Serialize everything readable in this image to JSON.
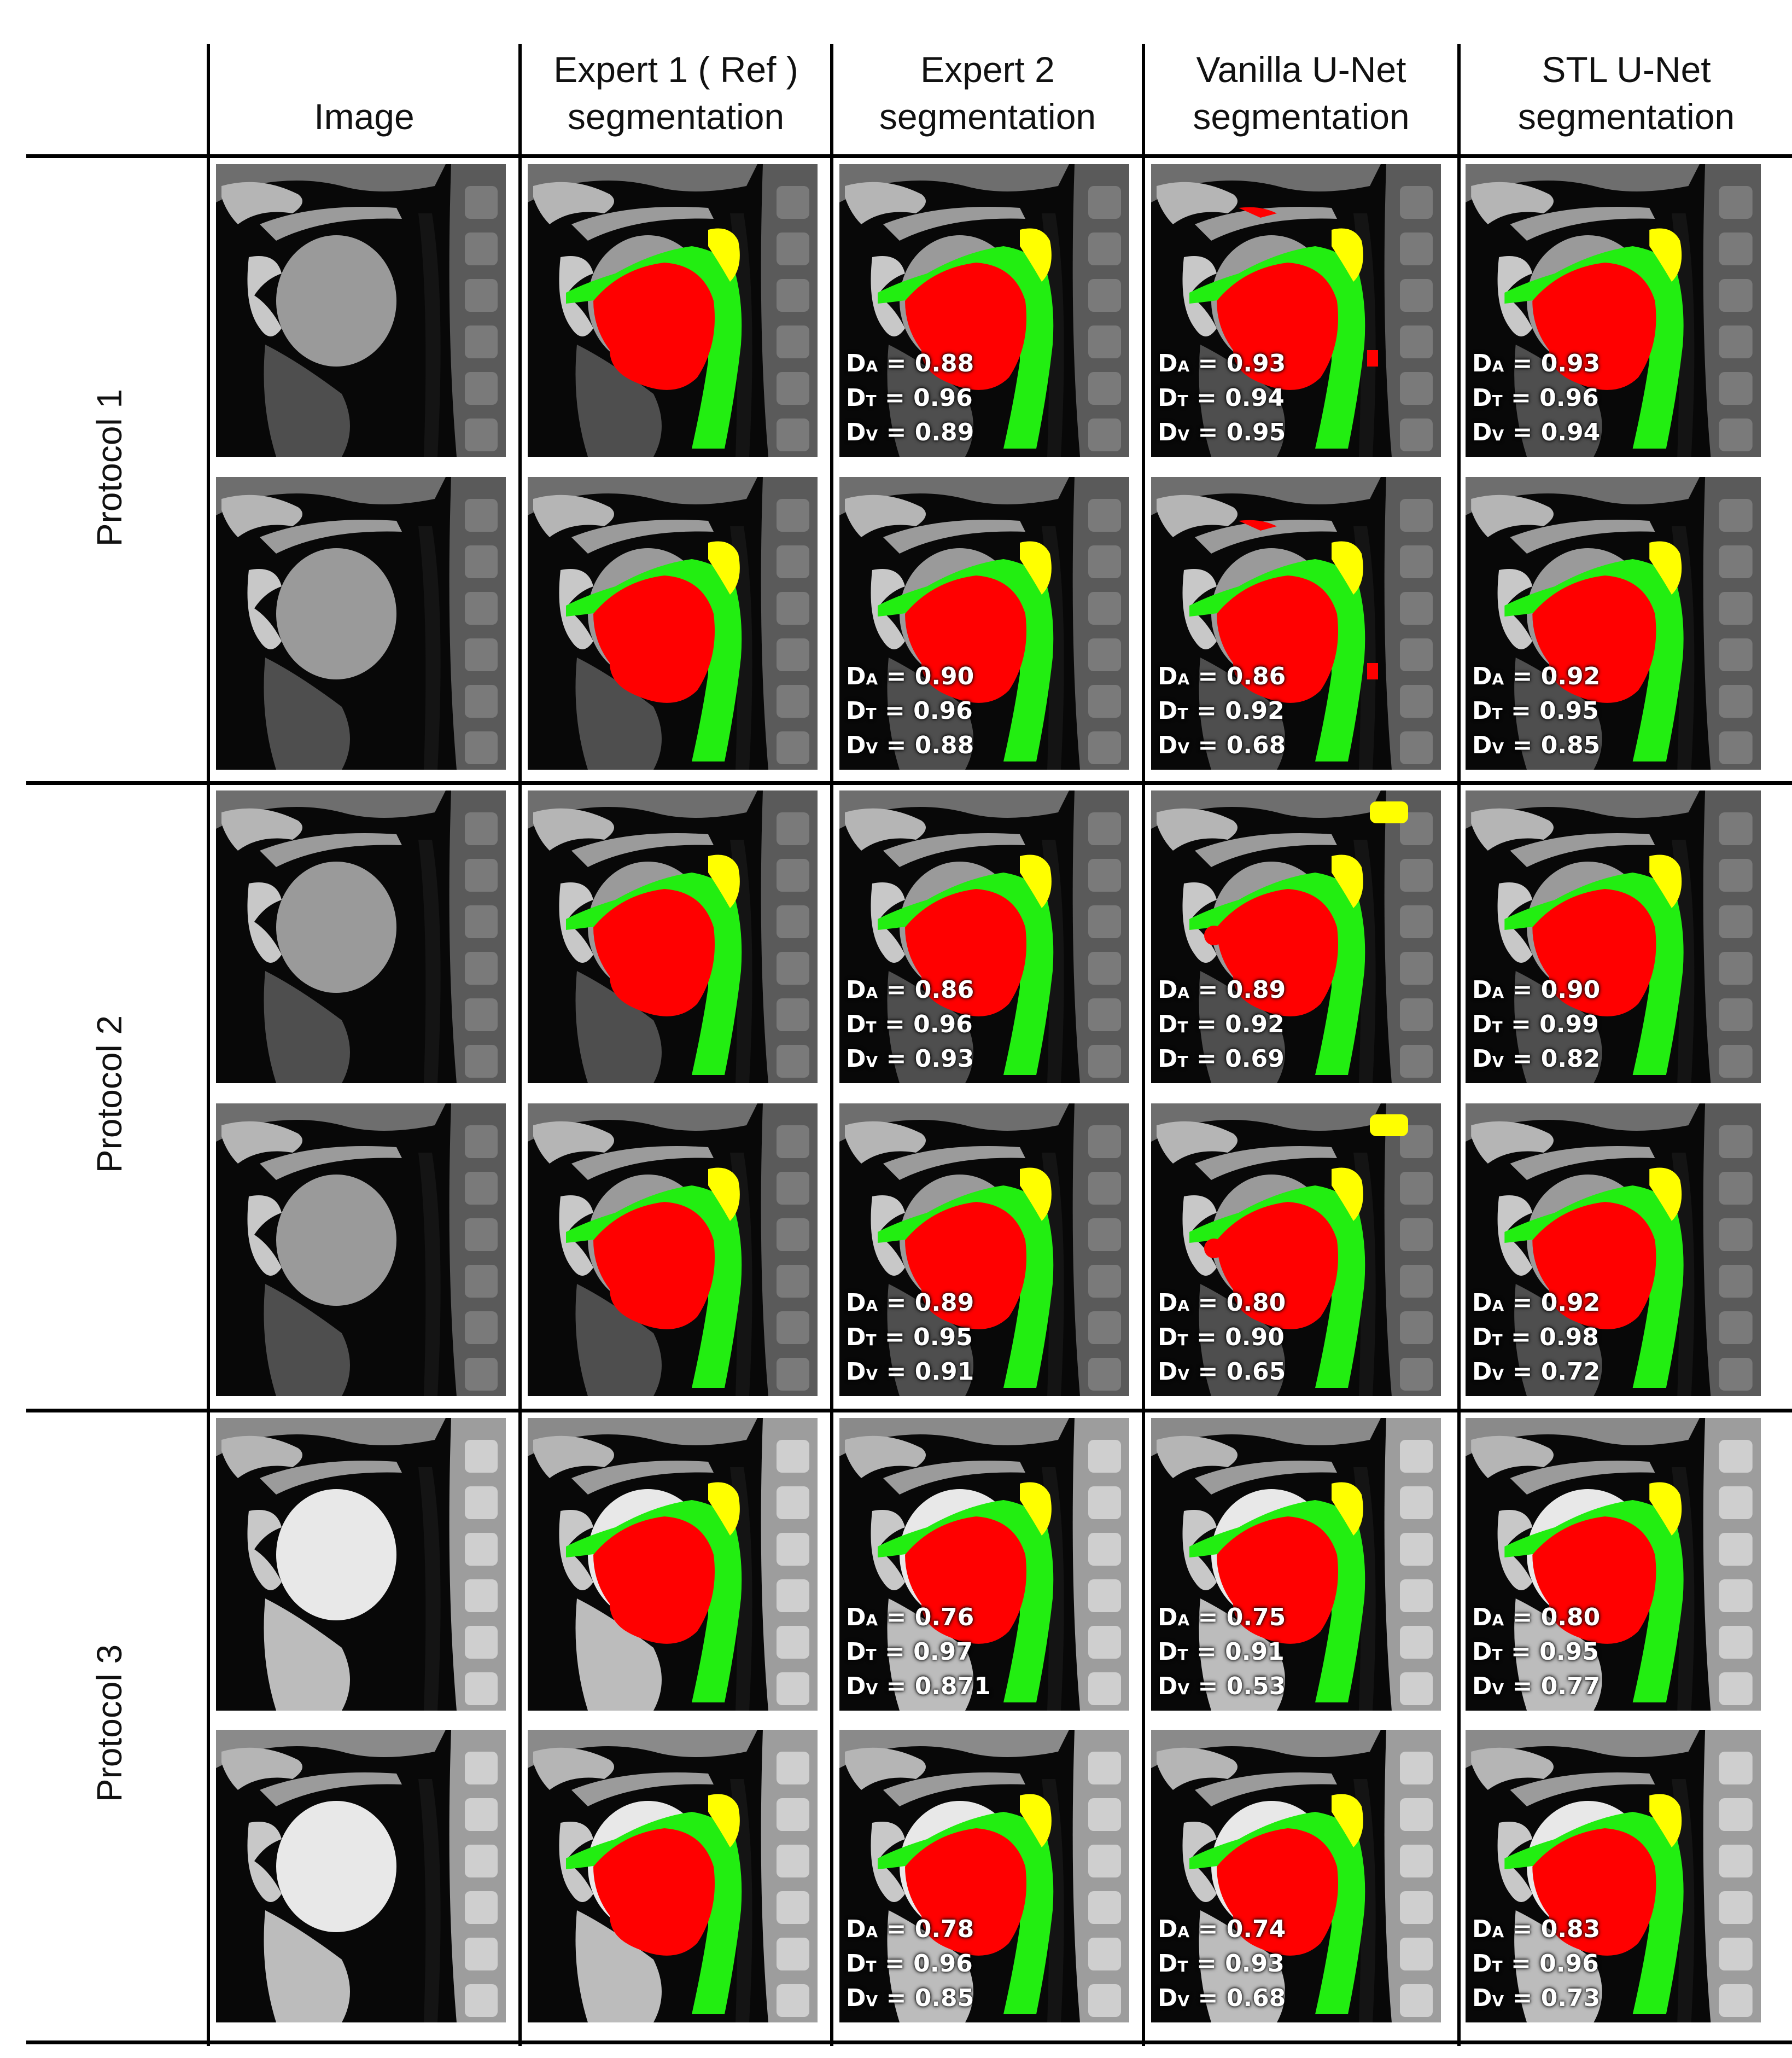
{
  "columns": [
    "Image",
    "Expert 1 ( Ref )\nsegmentation",
    "Expert 2\nsegmentation",
    "Vanilla U-Net\nsegmentation",
    "STL U-Net\nsegmentation"
  ],
  "protocols": [
    "Protocol 1",
    "Protocol 2",
    "Protocol 3"
  ],
  "colors": {
    "red_region": "#ff0000",
    "green_region": "#22ee11",
    "yellow_region": "#ffff00",
    "background": "#0a0a0a"
  },
  "rows": [
    {
      "image_style": "p1a",
      "metrics": [
        [
          {
            "k": "D",
            "s": "A",
            "v": "0.88"
          },
          {
            "k": "D",
            "s": "T",
            "v": "0.96"
          },
          {
            "k": "D",
            "s": "V",
            "v": "0.89"
          }
        ],
        [
          {
            "k": "D",
            "s": "A",
            "v": "0.93"
          },
          {
            "k": "D",
            "s": "T",
            "v": "0.94"
          },
          {
            "k": "D",
            "s": "V",
            "v": "0.95"
          }
        ],
        [
          {
            "k": "D",
            "s": "A",
            "v": "0.93"
          },
          {
            "k": "D",
            "s": "T",
            "v": "0.96"
          },
          {
            "k": "D",
            "s": "V",
            "v": "0.94"
          }
        ]
      ]
    },
    {
      "image_style": "p1b",
      "metrics": [
        [
          {
            "k": "D",
            "s": "A",
            "v": "0.90"
          },
          {
            "k": "D",
            "s": "T",
            "v": "0.96"
          },
          {
            "k": "D",
            "s": "V",
            "v": "0.88"
          }
        ],
        [
          {
            "k": "D",
            "s": "A",
            "v": "0.86"
          },
          {
            "k": "D",
            "s": "T",
            "v": "0.92"
          },
          {
            "k": "D",
            "s": "V",
            "v": "0.68"
          }
        ],
        [
          {
            "k": "D",
            "s": "A",
            "v": "0.92"
          },
          {
            "k": "D",
            "s": "T",
            "v": "0.95"
          },
          {
            "k": "D",
            "s": "V",
            "v": "0.85"
          }
        ]
      ]
    },
    {
      "image_style": "p2a",
      "metrics": [
        [
          {
            "k": "D",
            "s": "A",
            "v": "0.86"
          },
          {
            "k": "D",
            "s": "T",
            "v": "0.96"
          },
          {
            "k": "D",
            "s": "V",
            "v": "0.93"
          }
        ],
        [
          {
            "k": "D",
            "s": "A",
            "v": "0.89"
          },
          {
            "k": "D",
            "s": "T",
            "v": "0.92"
          },
          {
            "k": "D",
            "s": "T",
            "v": "0.69"
          }
        ],
        [
          {
            "k": "D",
            "s": "A",
            "v": "0.90"
          },
          {
            "k": "D",
            "s": "T",
            "v": "0.99"
          },
          {
            "k": "D",
            "s": "V",
            "v": "0.82"
          }
        ]
      ]
    },
    {
      "image_style": "p2b",
      "metrics": [
        [
          {
            "k": "D",
            "s": "A",
            "v": "0.89"
          },
          {
            "k": "D",
            "s": "T",
            "v": "0.95"
          },
          {
            "k": "D",
            "s": "V",
            "v": "0.91"
          }
        ],
        [
          {
            "k": "D",
            "s": "A",
            "v": "0.80"
          },
          {
            "k": "D",
            "s": "T",
            "v": "0.90"
          },
          {
            "k": "D",
            "s": "V",
            "v": "0.65"
          }
        ],
        [
          {
            "k": "D",
            "s": "A",
            "v": "0.92"
          },
          {
            "k": "D",
            "s": "T",
            "v": "0.98"
          },
          {
            "k": "D",
            "s": "V",
            "v": "0.72"
          }
        ]
      ]
    },
    {
      "image_style": "p3a",
      "metrics": [
        [
          {
            "k": "D",
            "s": "A",
            "v": "0.76"
          },
          {
            "k": "D",
            "s": "T",
            "v": "0.97"
          },
          {
            "k": "D",
            "s": "V",
            "v": "0.871"
          }
        ],
        [
          {
            "k": "D",
            "s": "A",
            "v": "0.75"
          },
          {
            "k": "D",
            "s": "T",
            "v": "0.91"
          },
          {
            "k": "D",
            "s": "V",
            "v": "0.53"
          }
        ],
        [
          {
            "k": "D",
            "s": "A",
            "v": "0.80"
          },
          {
            "k": "D",
            "s": "T",
            "v": "0.95"
          },
          {
            "k": "D",
            "s": "V",
            "v": "0.77"
          }
        ]
      ]
    },
    {
      "image_style": "p3b",
      "metrics": [
        [
          {
            "k": "D",
            "s": "A",
            "v": "0.78"
          },
          {
            "k": "D",
            "s": "T",
            "v": "0.96"
          },
          {
            "k": "D",
            "s": "V",
            "v": "0.85"
          }
        ],
        [
          {
            "k": "D",
            "s": "A",
            "v": "0.74"
          },
          {
            "k": "D",
            "s": "T",
            "v": "0.93"
          },
          {
            "k": "D",
            "s": "V",
            "v": "0.68"
          }
        ],
        [
          {
            "k": "D",
            "s": "A",
            "v": "0.83"
          },
          {
            "k": "D",
            "s": "T",
            "v": "0.96"
          },
          {
            "k": "D",
            "s": "V",
            "v": "0.73"
          }
        ]
      ]
    }
  ]
}
